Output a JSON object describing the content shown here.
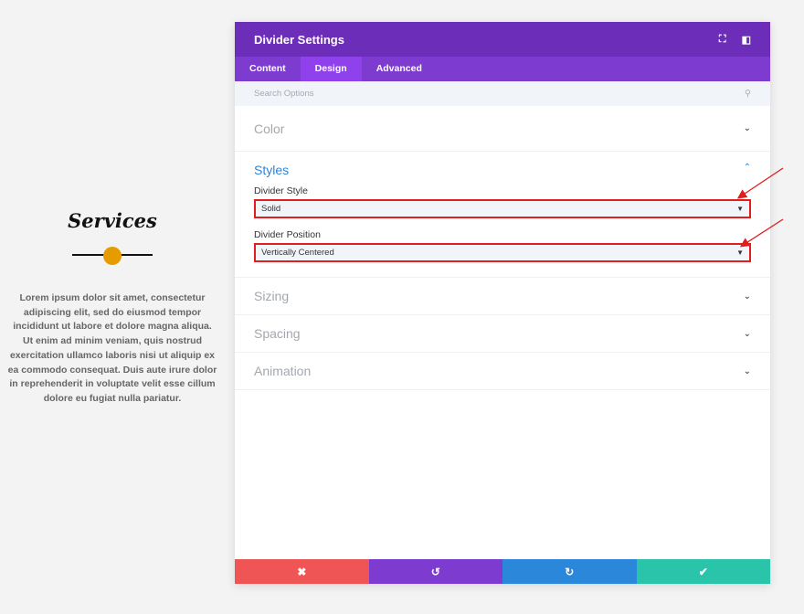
{
  "preview": {
    "title": "Services",
    "body": "Lorem ipsum dolor sit amet, consectetur adipiscing elit, sed do eiusmod tempor incididunt ut labore et dolore magna aliqua. Ut enim ad minim veniam, quis nostrud exercitation ullamco laboris nisi ut aliquip ex ea commodo consequat. Duis aute irure dolor in reprehenderit in voluptate velit esse cillum dolore eu fugiat nulla pariatur.",
    "divider_dot_color": "#e69c00"
  },
  "modal": {
    "title": "Divider Settings",
    "tabs": [
      "Content",
      "Design",
      "Advanced"
    ],
    "active_tab": "Design",
    "search_placeholder": "Search Options",
    "sections": {
      "color": "Color",
      "styles": "Styles",
      "sizing": "Sizing",
      "spacing": "Spacing",
      "animation": "Animation"
    },
    "fields": {
      "divider_style_label": "Divider Style",
      "divider_style_value": "Solid",
      "divider_position_label": "Divider Position",
      "divider_position_value": "Vertically Centered"
    },
    "footer": {
      "colors": {
        "cancel": "#ef5555",
        "undo": "#7e3bd0",
        "redo": "#2b87da",
        "save": "#29c4a9"
      }
    }
  }
}
